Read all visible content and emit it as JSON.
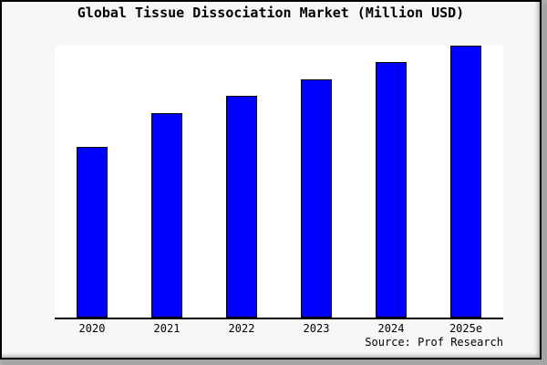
{
  "chart_data": {
    "type": "bar",
    "title": "Global Tissue Dissociation Market (Million USD)",
    "categories": [
      "2020",
      "2021",
      "2022",
      "2023",
      "2024",
      "2025e"
    ],
    "values": [
      62.9,
      75.3,
      81.6,
      87.7,
      94.0,
      100.0
    ],
    "values_note": "No y-axis ticks or labels are shown in the chart; values are bar heights expressed relative to the tallest bar (2025e) = 100.",
    "xlabel": "",
    "ylabel": "",
    "ylim": [
      0,
      100.3
    ],
    "y_axis_visible": false,
    "gridlines": false,
    "legend_visible": false,
    "colors": {
      "bar_fill": "#0000ff",
      "bar_outline": "#000000",
      "plot_background": "#ffffff",
      "canvas_background": "#f7f7f7",
      "frame_border": "#000000",
      "frame_shadow": "#a4a4a4",
      "text": "#000000"
    }
  },
  "source": "Source: Prof Research"
}
